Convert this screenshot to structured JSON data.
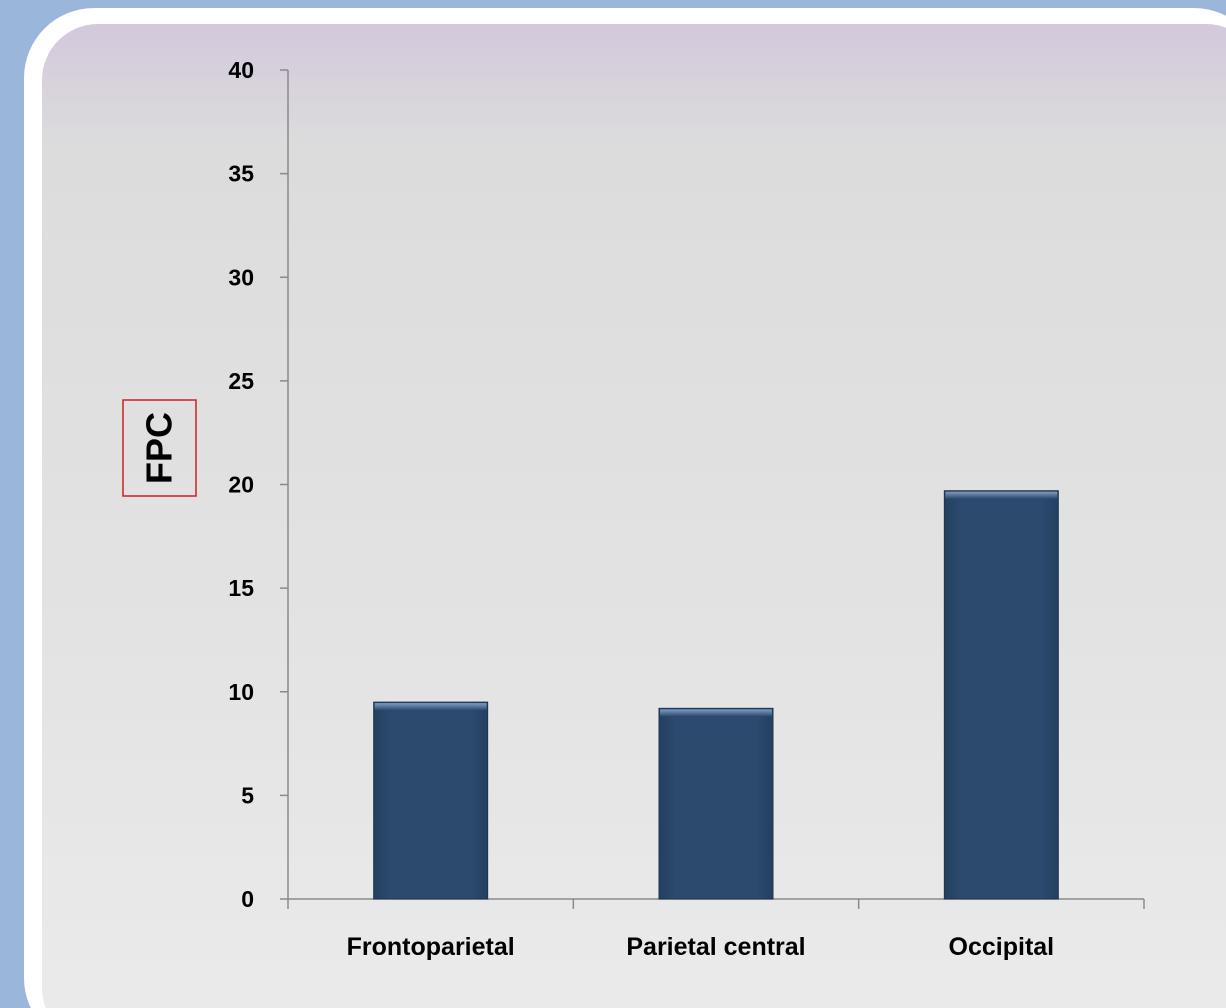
{
  "chart_data": {
    "type": "bar",
    "categories": [
      "Frontoparietal",
      "Parietal central",
      "Occipital"
    ],
    "values": [
      9.5,
      9.2,
      19.7
    ],
    "ylabel": "FPC",
    "xlabel": "",
    "ylim": [
      0,
      40
    ],
    "yticks": [
      "0",
      "5",
      "10",
      "15",
      "20",
      "25",
      "30",
      "35",
      "40"
    ],
    "grid": false,
    "legend": "none",
    "bar_color": "#2c4a6e",
    "bar_edge_color": "#1e3550",
    "axis_color": "#8a8a8a",
    "ylabel_box_color": "#d02020"
  }
}
